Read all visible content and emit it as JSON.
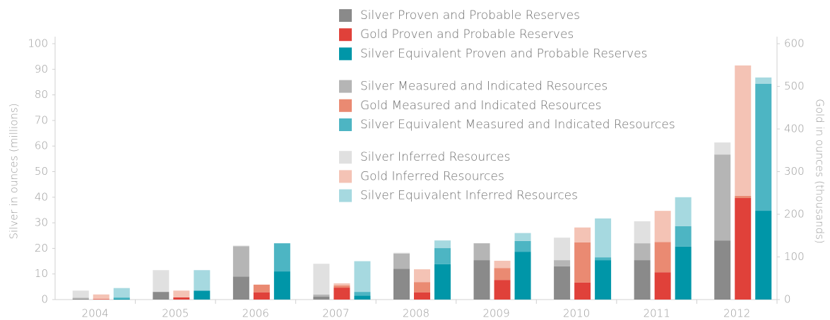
{
  "chart_data": {
    "type": "bar",
    "stacked": true,
    "y_label": "Silver in ounces (millions)",
    "y2_label": "Gold in ounces (thousands)",
    "categories": [
      "2004",
      "2005",
      "2006",
      "2007",
      "2008",
      "2009",
      "2010",
      "2011",
      "2012"
    ],
    "ylim": [
      0,
      100
    ],
    "yticks": [
      0,
      10,
      20,
      30,
      40,
      50,
      60,
      70,
      80,
      90,
      100
    ],
    "y2lim": [
      0,
      600
    ],
    "y2ticks": [
      0,
      100,
      200,
      300,
      400,
      500,
      600
    ],
    "series": [
      {
        "name": "Silver Proven and Probable Reserves",
        "color": "#8a8a8a",
        "values": [
          0.3,
          3,
          9,
          1.2,
          12,
          15.4,
          13,
          15.4,
          23.1
        ]
      },
      {
        "name": "Gold Proven and Probable Reserves",
        "color": "#e0413a",
        "axis": "y2",
        "values": [
          1,
          5,
          17,
          28,
          17,
          46,
          40,
          64,
          238
        ]
      },
      {
        "name": "Silver Equivalent Proven and Probable Reserves",
        "color": "#0096a8",
        "values": [
          0.3,
          3.5,
          11,
          1.5,
          13.8,
          18.7,
          15.4,
          20.7,
          34.7
        ]
      },
      {
        "name": "Silver Measured and Indicated Resources",
        "color": "#b5b5b5",
        "values": [
          0.4,
          0,
          11.8,
          0.8,
          6,
          6.6,
          2.4,
          6.6,
          33.6
        ]
      },
      {
        "name": "Gold Measured and Indicated Resources",
        "color": "#ea8a72",
        "axis": "y2",
        "values": [
          1,
          0,
          18,
          5,
          24,
          28,
          94,
          71,
          5
        ]
      },
      {
        "name": "Silver Equivalent Measured and Indicated Resources",
        "color": "#4db5c3",
        "values": [
          0.5,
          0,
          11,
          1.5,
          6.3,
          4.2,
          1.1,
          8,
          49.6
        ]
      },
      {
        "name": "Silver Inferred Resources",
        "color": "#e0e0e0",
        "values": [
          2.8,
          8.5,
          0.3,
          12,
          0.3,
          0,
          8.8,
          8.6,
          4.7
        ]
      },
      {
        "name": "Gold Inferred Resources",
        "color": "#f4c3b5",
        "axis": "y2",
        "values": [
          10,
          16,
          0,
          5,
          30,
          17,
          35,
          73,
          306
        ]
      },
      {
        "name": "Silver Equivalent Inferred Resources",
        "color": "#a6d9e0",
        "values": [
          3.7,
          8,
          0,
          12,
          3,
          3.1,
          15.2,
          11.3,
          2.5
        ]
      }
    ]
  }
}
